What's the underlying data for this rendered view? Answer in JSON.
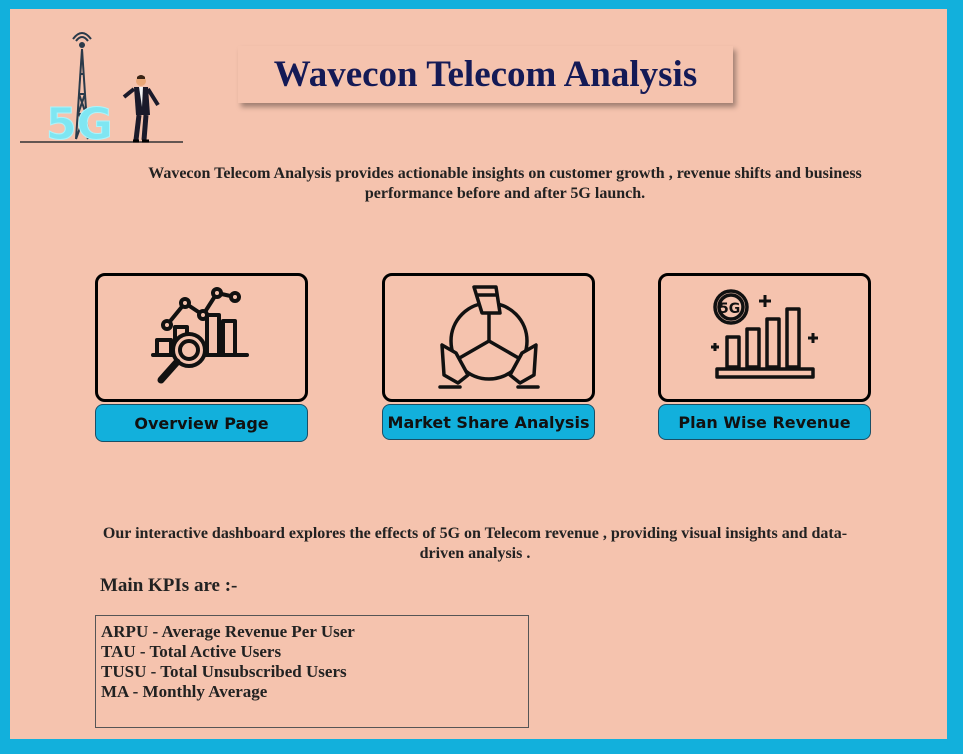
{
  "header": {
    "title": "Wavecon Telecom Analysis",
    "logo_icon": "5g-tower-businessman-icon",
    "logo_text": "5G"
  },
  "intro_text": "Wavecon Telecom Analysis provides actionable insights on customer growth , revenue shifts and business performance before and after 5G launch.",
  "nav": [
    {
      "label": "Overview Page",
      "icon": "chart-magnifier-icon"
    },
    {
      "label": "Market Share Analysis",
      "icon": "pie-hands-icon"
    },
    {
      "label": "Plan Wise Revenue",
      "icon": "5g-bar-chart-icon"
    }
  ],
  "description": "Our interactive dashboard explores the effects of 5G on Telecom revenue , providing visual insights and data-driven analysis .",
  "kpi": {
    "heading": "Main KPIs are :-",
    "items": [
      "ARPU - Average Revenue Per User",
      "TAU - Total Active Users",
      "TUSU - Total Unsubscribed Users",
      "MA - Monthly Average"
    ]
  },
  "colors": {
    "border": "#12b0dc",
    "background": "#f5c3ae",
    "button": "#12b0dc",
    "title": "#141a56"
  }
}
